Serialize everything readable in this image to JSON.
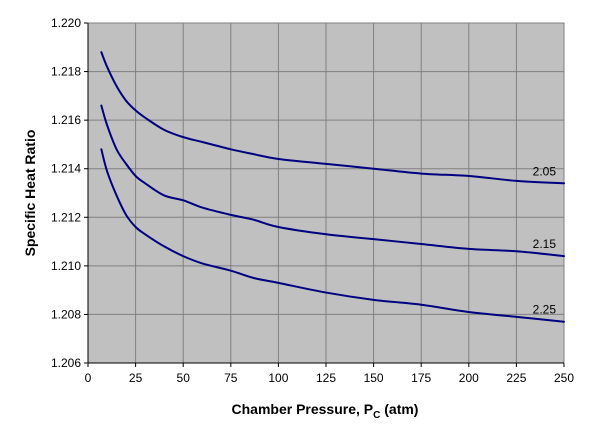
{
  "chart_data": {
    "type": "line",
    "title": "",
    "xlabel": "Chamber Pressure, P",
    "xlabel_subscript": "C",
    "xlabel_suffix": " (atm)",
    "ylabel": "Specific Heat Ratio",
    "xlim": [
      0,
      250
    ],
    "ylim": [
      1.206,
      1.22
    ],
    "x_ticks": [
      "0",
      "25",
      "50",
      "75",
      "100",
      "125",
      "150",
      "175",
      "200",
      "225",
      "250"
    ],
    "y_ticks": [
      "1.206",
      "1.208",
      "1.210",
      "1.212",
      "1.214",
      "1.216",
      "1.218",
      "1.220"
    ],
    "grid": true,
    "plot_background": "#c0c0c0",
    "grid_color": "#808080",
    "line_color": "#000080",
    "series": [
      {
        "name": "2.05",
        "x": [
          7,
          10,
          15,
          20,
          25,
          30,
          40,
          50,
          60,
          75,
          87,
          100,
          125,
          150,
          175,
          200,
          225,
          250
        ],
        "values": [
          1.2188,
          1.2182,
          1.2174,
          1.2168,
          1.2164,
          1.2161,
          1.2156,
          1.2153,
          1.2151,
          1.2148,
          1.2146,
          1.2144,
          1.2142,
          1.214,
          1.2138,
          1.2137,
          1.2135,
          1.2134
        ]
      },
      {
        "name": "2.15",
        "x": [
          7,
          10,
          15,
          20,
          25,
          30,
          40,
          50,
          60,
          75,
          87,
          100,
          125,
          150,
          175,
          200,
          225,
          250
        ],
        "values": [
          1.2166,
          1.2158,
          1.2148,
          1.2142,
          1.2137,
          1.2134,
          1.2129,
          1.2127,
          1.2124,
          1.2121,
          1.2119,
          1.2116,
          1.2113,
          1.2111,
          1.2109,
          1.2107,
          1.2106,
          1.2104
        ]
      },
      {
        "name": "2.25",
        "x": [
          7,
          10,
          15,
          20,
          25,
          30,
          40,
          50,
          60,
          75,
          87,
          100,
          125,
          150,
          175,
          200,
          225,
          250
        ],
        "values": [
          1.2148,
          1.2139,
          1.2129,
          1.2121,
          1.2116,
          1.2113,
          1.2108,
          1.2104,
          1.2101,
          1.2098,
          1.2095,
          1.2093,
          1.2089,
          1.2086,
          1.2084,
          1.2081,
          1.2079,
          1.2077
        ]
      }
    ]
  }
}
